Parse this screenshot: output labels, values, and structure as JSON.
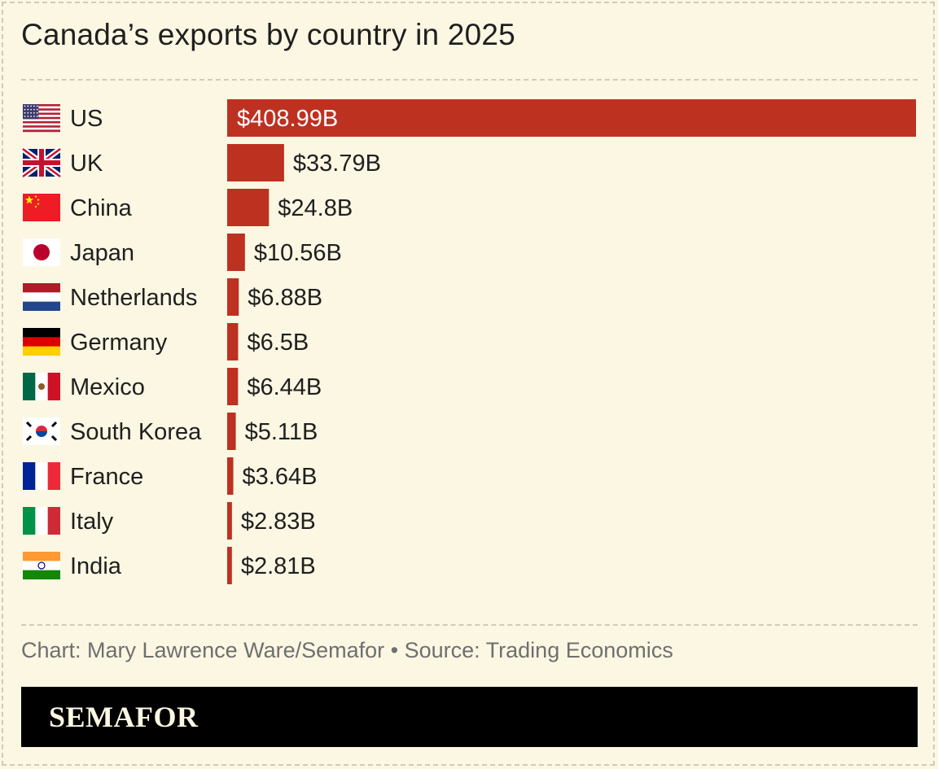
{
  "title": "Canada’s exports by country in 2025",
  "credit": "Chart: Mary Lawrence Ware/Semafor • Source: Trading Economics",
  "brand": "SEMAFOR",
  "colors": {
    "background": "#fbf7e3",
    "bar": "#bd3121",
    "text": "#1f1f1f",
    "credit": "#6f6f6f",
    "inside_label": "#ffffff"
  },
  "chart_data": {
    "type": "bar",
    "orientation": "horizontal",
    "unit": "billion USD",
    "categories": [
      "US",
      "UK",
      "China",
      "Japan",
      "Netherlands",
      "Germany",
      "Mexico",
      "South Korea",
      "France",
      "Italy",
      "India"
    ],
    "values": [
      408.99,
      33.79,
      24.8,
      10.56,
      6.88,
      6.5,
      6.44,
      5.11,
      3.64,
      2.83,
      2.81
    ],
    "data_labels": [
      "$408.99B",
      "$33.79B",
      "$24.8B",
      "$10.56B",
      "$6.88B",
      "$6.5B",
      "$6.44B",
      "$5.11B",
      "$3.64B",
      "$2.83B",
      "$2.81B"
    ],
    "flags": [
      "us-flag-icon",
      "uk-flag-icon",
      "china-flag-icon",
      "japan-flag-icon",
      "netherlands-flag-icon",
      "germany-flag-icon",
      "mexico-flag-icon",
      "south-korea-flag-icon",
      "france-flag-icon",
      "italy-flag-icon",
      "india-flag-icon"
    ],
    "xlim": [
      0,
      408.99
    ],
    "grid": false,
    "legend": "none"
  }
}
